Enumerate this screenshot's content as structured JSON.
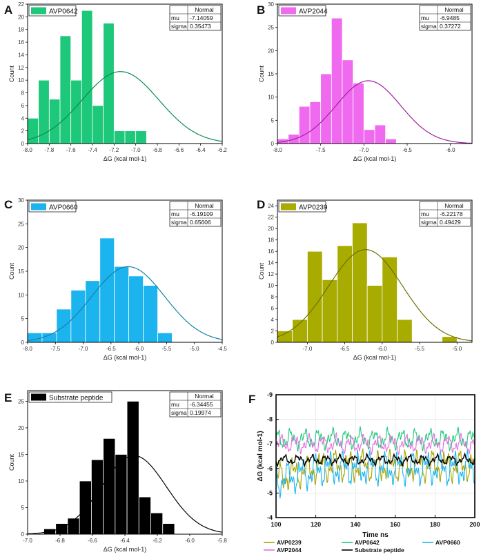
{
  "chart_data": [
    {
      "panel": "A",
      "type": "bar",
      "legend": "AVP0642",
      "color": "#1ec87a",
      "fit": {
        "header": "Normal",
        "mu_label": "mu",
        "mu": -7.14059,
        "sigma_label": "sigma",
        "sigma": 0.35473
      },
      "bins_start": -8.1,
      "bin_width": 0.1,
      "values": [
        1,
        4,
        10,
        7,
        17,
        10,
        21,
        6,
        19,
        2,
        2,
        2
      ],
      "xlim": [
        -8.0,
        -6.2
      ],
      "ylim": [
        0,
        22
      ],
      "xticks": [
        -8.0,
        -7.8,
        -7.6,
        -7.4,
        -7.2,
        -7.0,
        -6.8,
        -6.6,
        -6.4,
        -6.2
      ],
      "xtick_labels": [
        "-8.0",
        "-7.8",
        "-7.6",
        "-7.4",
        "-7.2",
        "-7.0",
        "-6.8",
        "-6.6",
        "-6.4",
        "-6.2"
      ],
      "yticks": [
        0,
        2,
        4,
        6,
        8,
        10,
        12,
        14,
        16,
        18,
        20,
        22
      ],
      "xlabel": "ΔG (kcal mol-1)",
      "ylabel": "Count"
    },
    {
      "panel": "B",
      "type": "bar",
      "legend": "AVP2044",
      "color": "#f06af0",
      "fit": {
        "header": "Normal",
        "mu_label": "mu",
        "mu": -6.9485,
        "sigma_label": "sigma",
        "sigma": 0.37272
      },
      "bins_start": -8.0,
      "bin_width": 0.125,
      "values": [
        1,
        2,
        8,
        9,
        15,
        27,
        18,
        13,
        3,
        4,
        1
      ],
      "xlim": [
        -8.0,
        -5.75
      ],
      "ylim": [
        0,
        30
      ],
      "xticks": [
        -8.0,
        -7.5,
        -7.0,
        -6.5,
        -6.0
      ],
      "xtick_labels": [
        "-8.0",
        "-7.5",
        "-7.0",
        "-6.5",
        "-6.0"
      ],
      "yticks": [
        0,
        5,
        10,
        15,
        20,
        25,
        30
      ],
      "xlabel": "ΔG (kcal mol-1)",
      "ylabel": "Count"
    },
    {
      "panel": "C",
      "type": "bar",
      "legend": "AVP0660",
      "color": "#1cb4ee",
      "fit": {
        "header": "Normal",
        "mu_label": "mu",
        "mu": -6.19109,
        "sigma_label": "sigma",
        "sigma": 0.65606
      },
      "bins_start": -8.0,
      "bin_width": 0.26,
      "values": [
        2,
        2,
        7,
        11,
        13,
        22,
        16,
        14,
        12,
        2
      ],
      "xlim": [
        -8.0,
        -4.5
      ],
      "ylim": [
        0,
        30
      ],
      "xticks": [
        -8.0,
        -7.5,
        -7.0,
        -6.5,
        -6.0,
        -5.5,
        -5.0,
        -4.5
      ],
      "xtick_labels": [
        "-8.0",
        "-7.5",
        "-7.0",
        "-6.5",
        "-6.0",
        "-5.5",
        "-5.0",
        "-4.5"
      ],
      "yticks": [
        0,
        5,
        10,
        15,
        20,
        25,
        30
      ],
      "xlabel": "ΔG (kcal mol-1)",
      "ylabel": "Count"
    },
    {
      "panel": "D",
      "type": "bar",
      "legend": "AVP0239",
      "color": "#a8ab00",
      "fit": {
        "header": "Normal",
        "mu_label": "mu",
        "mu": -6.22178,
        "sigma_label": "sigma",
        "sigma": 0.49429
      },
      "bins_start": -7.4,
      "bin_width": 0.2,
      "values": [
        2,
        4,
        16,
        11,
        17,
        21,
        10,
        15,
        4,
        0,
        0,
        1
      ],
      "xlim": [
        -7.4,
        -4.8
      ],
      "ylim": [
        0,
        25
      ],
      "xticks": [
        -7.0,
        -6.5,
        -6.0,
        -5.5,
        -5.0
      ],
      "xtick_labels": [
        "-7.0",
        "-6.5",
        "-6.0",
        "-5.5",
        "-5.0"
      ],
      "yticks": [
        0,
        2,
        4,
        6,
        8,
        10,
        12,
        14,
        16,
        18,
        20,
        22,
        24
      ],
      "xlabel": "ΔG (kcal mol-1)",
      "ylabel": "Count"
    },
    {
      "panel": "E",
      "type": "bar",
      "legend": "Substrate peptide",
      "color": "#000000",
      "fit": {
        "header": "Normal",
        "mu_label": "mu",
        "mu": -6.34455,
        "sigma_label": "sigma",
        "sigma": 0.19974
      },
      "bins_start": -6.9,
      "bin_width": 0.0733,
      "values": [
        1,
        2,
        3,
        10,
        14,
        18,
        15,
        25,
        7,
        4,
        2
      ],
      "xlim": [
        -7.0,
        -5.8
      ],
      "ylim": [
        0,
        27
      ],
      "xticks": [
        -7.0,
        -6.8,
        -6.6,
        -6.4,
        -6.2,
        -6.0,
        -5.8
      ],
      "xtick_labels": [
        "-7.0",
        "-6.8",
        "-6.6",
        "-6.4",
        "-6.2",
        "-6.0",
        "-5.8"
      ],
      "yticks": [
        0,
        5,
        10,
        15,
        20,
        25
      ],
      "xlabel": "ΔG (kcal mol-1)",
      "ylabel": "Count"
    },
    {
      "panel": "F",
      "type": "line",
      "xlim": [
        100,
        200
      ],
      "ylim": [
        -4,
        -9
      ],
      "xticks": [
        100,
        120,
        140,
        160,
        180,
        200
      ],
      "xtick_labels": [
        "100",
        "120",
        "140",
        "160",
        "180",
        "200"
      ],
      "yticks": [
        -4,
        -5,
        -6,
        -7,
        -8,
        -9
      ],
      "ytick_labels": [
        "-4",
        "-5",
        "-6",
        "-7",
        "-8",
        "-9"
      ],
      "xlabel": "Time ns",
      "ylabel": "ΔG (kcal mol-1)",
      "series": [
        {
          "name": "AVP0239",
          "color": "#a8a400",
          "mean": -6.1,
          "amp": 0.7,
          "phase": 1.1
        },
        {
          "name": "AVP0642",
          "color": "#1ec87a",
          "mean": -7.2,
          "amp": 0.45,
          "phase": 2.3
        },
        {
          "name": "AVP0660",
          "color": "#1cb4ee",
          "mean": -6.0,
          "amp": 0.75,
          "phase": 3.7
        },
        {
          "name": "AVP2044",
          "color": "#e070e0",
          "mean": -7.0,
          "amp": 0.4,
          "phase": 0.4
        },
        {
          "name": "Substrate peptide",
          "color": "#000000",
          "mean": -6.35,
          "amp": 0.22,
          "phase": 5.2
        }
      ]
    }
  ]
}
